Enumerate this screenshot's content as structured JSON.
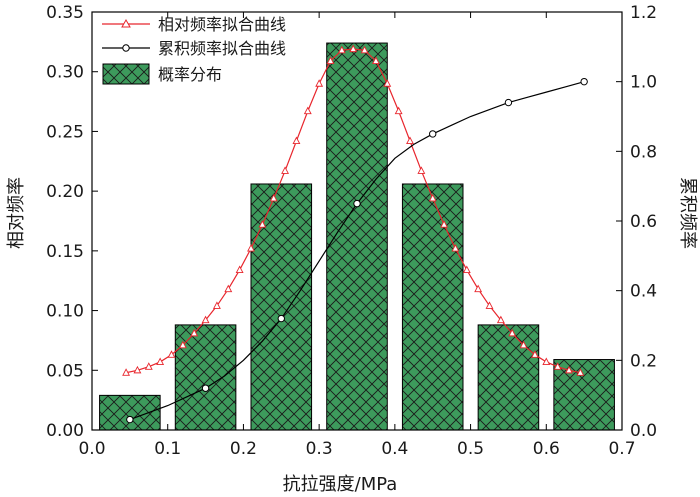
{
  "chart_data": {
    "type": "bar",
    "xlabel": "抗拉强度/MPa",
    "ylabel_left": "相对频率",
    "ylabel_right": "累积频率",
    "xlim": [
      0.0,
      0.7
    ],
    "ylim_left": [
      0.0,
      0.35
    ],
    "ylim_right": [
      0.0,
      1.2
    ],
    "x_ticks": [
      "0.0",
      "0.1",
      "0.2",
      "0.3",
      "0.4",
      "0.5",
      "0.6",
      "0.7"
    ],
    "y_left_ticks": [
      "0.00",
      "0.05",
      "0.10",
      "0.15",
      "0.20",
      "0.25",
      "0.30",
      "0.35"
    ],
    "y_right_ticks": [
      "0.0",
      "0.2",
      "0.4",
      "0.6",
      "0.8",
      "1.0",
      "1.2"
    ],
    "legend_position": "top-left",
    "bars": {
      "name": "概率分布",
      "color": "#3d9a5c",
      "centers": [
        0.05,
        0.15,
        0.25,
        0.35,
        0.45,
        0.55,
        0.65
      ],
      "width": 0.08,
      "values": [
        0.029,
        0.088,
        0.206,
        0.324,
        0.206,
        0.088,
        0.059
      ]
    },
    "relative_curve": {
      "name": "相对频率拟合曲线",
      "color": "#e8262d",
      "marker": "triangle",
      "x": [
        0.045,
        0.06,
        0.075,
        0.09,
        0.105,
        0.12,
        0.135,
        0.15,
        0.165,
        0.18,
        0.195,
        0.21,
        0.225,
        0.24,
        0.255,
        0.27,
        0.285,
        0.3,
        0.315,
        0.33,
        0.345,
        0.36,
        0.375,
        0.39,
        0.405,
        0.42,
        0.435,
        0.45,
        0.465,
        0.48,
        0.495,
        0.51,
        0.525,
        0.54,
        0.555,
        0.57,
        0.585,
        0.6,
        0.615,
        0.63,
        0.645
      ],
      "y": [
        0.048,
        0.05,
        0.053,
        0.057,
        0.063,
        0.071,
        0.081,
        0.092,
        0.104,
        0.118,
        0.134,
        0.152,
        0.172,
        0.194,
        0.217,
        0.242,
        0.267,
        0.29,
        0.309,
        0.318,
        0.319,
        0.318,
        0.309,
        0.29,
        0.267,
        0.242,
        0.217,
        0.194,
        0.172,
        0.152,
        0.134,
        0.118,
        0.104,
        0.092,
        0.081,
        0.071,
        0.063,
        0.057,
        0.053,
        0.05,
        0.048
      ]
    },
    "cumulative_curve": {
      "name": "累积频率拟合曲线",
      "color": "#000000",
      "marker": "circle",
      "points_x": [
        0.05,
        0.15,
        0.25,
        0.35,
        0.45,
        0.55,
        0.65
      ],
      "points_y": [
        0.03,
        0.12,
        0.32,
        0.65,
        0.85,
        0.94,
        1.0
      ],
      "line_x": [
        0.05,
        0.075,
        0.1,
        0.125,
        0.15,
        0.175,
        0.2,
        0.225,
        0.25,
        0.275,
        0.3,
        0.325,
        0.35,
        0.375,
        0.4,
        0.425,
        0.45,
        0.475,
        0.5,
        0.525,
        0.55,
        0.575,
        0.6,
        0.625,
        0.65
      ],
      "line_y": [
        0.03,
        0.05,
        0.07,
        0.095,
        0.12,
        0.155,
        0.2,
        0.255,
        0.32,
        0.4,
        0.485,
        0.57,
        0.65,
        0.72,
        0.78,
        0.82,
        0.85,
        0.875,
        0.9,
        0.92,
        0.94,
        0.955,
        0.97,
        0.985,
        1.0
      ]
    }
  }
}
